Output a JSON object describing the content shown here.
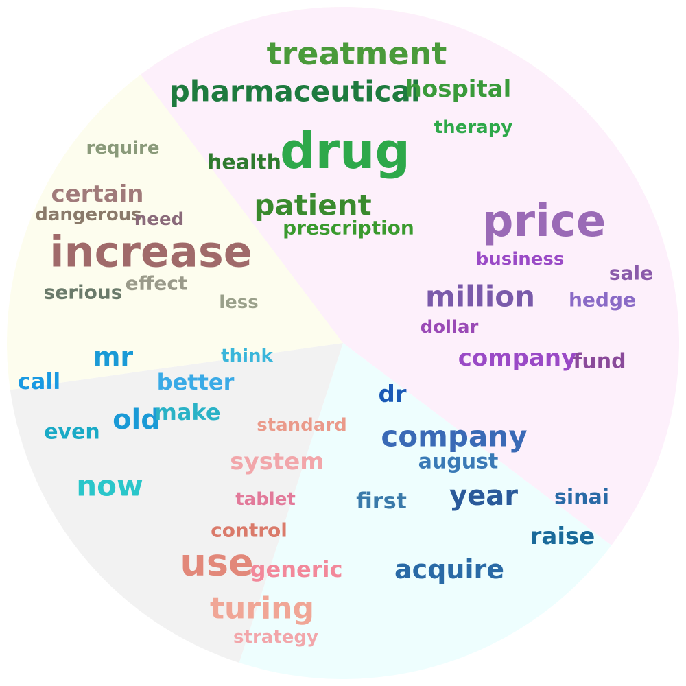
{
  "topics": [
    {
      "name": "topic-1",
      "background": "#fdfdee",
      "words": [
        {
          "text": "treatment",
          "color": "#4a9a3a"
        },
        {
          "text": "pharmaceutical",
          "color": "#1e7a3e"
        },
        {
          "text": "hospital",
          "color": "#3a9a3a"
        },
        {
          "text": "therapy",
          "color": "#2ea84a"
        },
        {
          "text": "drug",
          "color": "#2ea84a"
        },
        {
          "text": "health",
          "color": "#2e7a2e"
        },
        {
          "text": "patient",
          "color": "#3a8a2e"
        },
        {
          "text": "prescription",
          "color": "#3a9a2e"
        }
      ]
    },
    {
      "name": "topic-2",
      "background": "#fdf0fb",
      "words": [
        {
          "text": "price",
          "color": "#9a6ab6"
        },
        {
          "text": "business",
          "color": "#9a4ac6"
        },
        {
          "text": "sale",
          "color": "#8a5aaa"
        },
        {
          "text": "million",
          "color": "#7a5aaa"
        },
        {
          "text": "hedge",
          "color": "#8a6ac6"
        },
        {
          "text": "dollar",
          "color": "#9a4ab6"
        },
        {
          "text": "company",
          "color": "#9a4ac6"
        },
        {
          "text": "fund",
          "color": "#8a4a9a"
        }
      ]
    },
    {
      "name": "topic-3",
      "background": "#eefefe",
      "words": [
        {
          "text": "dr",
          "color": "#1a5ab6"
        },
        {
          "text": "company",
          "color": "#3a6ab6"
        },
        {
          "text": "august",
          "color": "#3a7ab6"
        },
        {
          "text": "first",
          "color": "#3a7aaa"
        },
        {
          "text": "year",
          "color": "#2a5a9a"
        },
        {
          "text": "sinai",
          "color": "#2a6aa6"
        },
        {
          "text": "raise",
          "color": "#1a6a9a"
        },
        {
          "text": "acquire",
          "color": "#2a6aa6"
        }
      ]
    },
    {
      "name": "topic-4",
      "background": "#f2f2f2",
      "words": [
        {
          "text": "standard",
          "color": "#ea9a8a"
        },
        {
          "text": "system",
          "color": "#f2a6aa"
        },
        {
          "text": "tablet",
          "color": "#e27a9a"
        },
        {
          "text": "control",
          "color": "#da7a6a"
        },
        {
          "text": "use",
          "color": "#e2887a"
        },
        {
          "text": "generic",
          "color": "#f2889a"
        },
        {
          "text": "turing",
          "color": "#f0a696"
        },
        {
          "text": "strategy",
          "color": "#f2a6aa"
        }
      ]
    },
    {
      "name": "topic-5",
      "background": "#fdfdee",
      "words": [
        {
          "text": "mr",
          "color": "#1a9ad6"
        },
        {
          "text": "think",
          "color": "#3ab6da"
        },
        {
          "text": "call",
          "color": "#1a9ae2"
        },
        {
          "text": "better",
          "color": "#3aaae6"
        },
        {
          "text": "old",
          "color": "#1a9ad6"
        },
        {
          "text": "make",
          "color": "#2ab2c6"
        },
        {
          "text": "even",
          "color": "#1aaac6"
        },
        {
          "text": "now",
          "color": "#2ac6ca"
        }
      ]
    },
    {
      "name": "topic-6",
      "background": "#fdf0fb",
      "words": [
        {
          "text": "require",
          "color": "#8a9a7a"
        },
        {
          "text": "certain",
          "color": "#a07a7a"
        },
        {
          "text": "dangerous",
          "color": "#8a7a6a"
        },
        {
          "text": "need",
          "color": "#8a6a7a"
        },
        {
          "text": "increase",
          "color": "#a06a6a"
        },
        {
          "text": "serious",
          "color": "#6a7a6a"
        },
        {
          "text": "effect",
          "color": "#9a9a8a"
        },
        {
          "text": "less",
          "color": "#9aa08a"
        }
      ]
    }
  ]
}
